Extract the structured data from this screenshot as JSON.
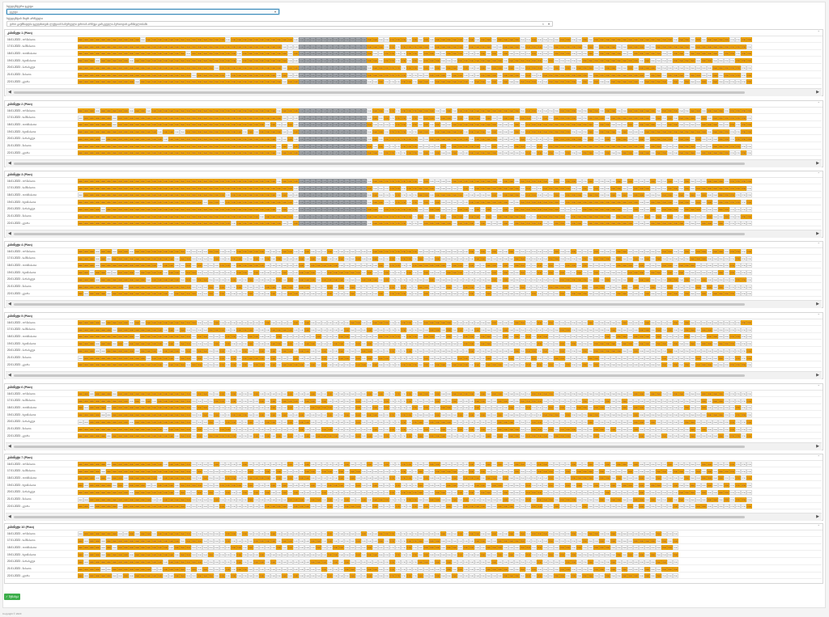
{
  "form": {
    "label1": "სტუდენტური ჯგუფი",
    "select1_value": "ჯგუფი",
    "label2": "სტუდენტის მიერ არჩეული",
    "select2_value": "დრო გაუმზადება ჯგუფისთვის ლექციის სასურველი დროის არჩევა გარკვეული პერიოდის განმავლობაში"
  },
  "row_labels": [
    "16.01.2023 - ორშაბათი",
    "17.01.2023 - სამშაბათი",
    "18.01.2023 - ოთხშაბათი",
    "19.01.2023 - ხუთშაბათი",
    "20.01.2023 - პარასკევი",
    "21.01.2023 - შაბათი",
    "22.01.2023 - კვირა"
  ],
  "times_start": "08:00",
  "panels": [
    {
      "title": "კაბინეტი 1 (Plan)"
    },
    {
      "title": "კაბინეტი 2 (Plan)"
    },
    {
      "title": "კაბინეტი 3 (Plan)"
    },
    {
      "title": "კაბინეტი 4 (Plan)"
    },
    {
      "title": "კაბინეტი 5 (Plan)"
    },
    {
      "title": "კაბინეტი 6 (Plan)"
    },
    {
      "title": "კაბინეტი 7 (Plan)"
    },
    {
      "title": "კაბინეტი 10 (Plan)"
    }
  ],
  "save_label": "შენახვა",
  "footer": "Copyright © 2023"
}
